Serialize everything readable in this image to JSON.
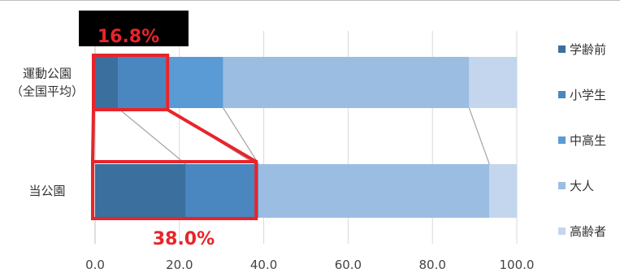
{
  "chart_data": {
    "type": "bar",
    "orientation": "horizontal",
    "stacked": true,
    "categories": [
      "運動公園\n（全国平均）",
      "当公園"
    ],
    "series": [
      {
        "name": "学齢前",
        "color": "#3a6f9e",
        "values": [
          5.4,
          21.5
        ]
      },
      {
        "name": "小学生",
        "color": "#4a86bf",
        "values": [
          11.4,
          16.5
        ]
      },
      {
        "name": "中高生",
        "color": "#5b9bd5",
        "values": [
          13.6,
          0.8
        ]
      },
      {
        "name": "大人",
        "color": "#9bbde2",
        "values": [
          58.3,
          54.7
        ]
      },
      {
        "name": "高齢者",
        "color": "#c3d6ee",
        "values": [
          11.3,
          6.5
        ]
      }
    ],
    "xlim": [
      0,
      100
    ],
    "xticks": [
      "0.0",
      "20.0",
      "40.0",
      "60.0",
      "80.0",
      "100.0"
    ],
    "grid": true,
    "legend_position": "right",
    "annotations": [
      {
        "text": "16.8%",
        "color": "#e8242a",
        "background": "#000000",
        "category": 0,
        "span": [
          0,
          16.8
        ]
      },
      {
        "text": "38.0%",
        "color": "#e8242a",
        "background": "#ffffff",
        "category": 1,
        "span": [
          0,
          38.0
        ]
      }
    ]
  }
}
